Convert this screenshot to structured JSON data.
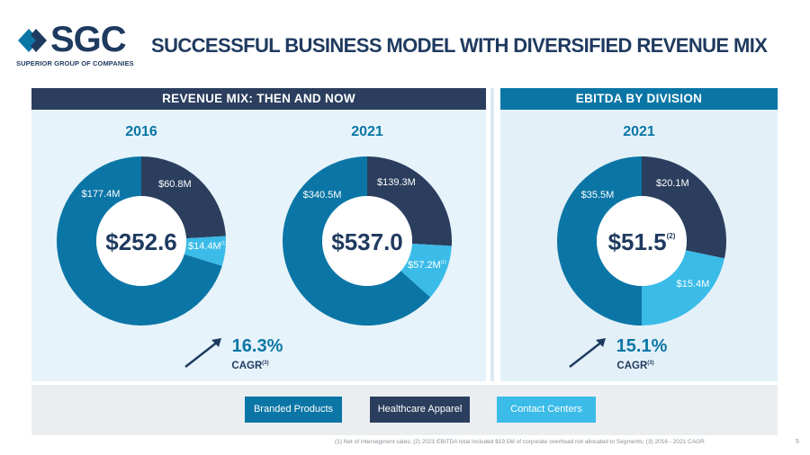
{
  "logo": {
    "name": "SGC",
    "tagline": "SUPERIOR GROUP OF COMPANIES"
  },
  "title": "SUCCESSFUL BUSINESS MODEL WITH DIVERSIFIED REVENUE MIX",
  "sections": {
    "left": "REVENUE MIX: THEN AND NOW",
    "right": "EBITDA BY DIVISION"
  },
  "colors": {
    "branded": "#0b76a6",
    "healthcare": "#2b3e5e",
    "contact": "#3bbce8",
    "accent": "#1f3a5f"
  },
  "legend": [
    "Branded Products",
    "Healthcare Apparel",
    "Contact Centers"
  ],
  "chart_data": [
    {
      "type": "pie",
      "title": "2016",
      "center_label": "$252.6",
      "center_superscript": "",
      "categories": [
        "Healthcare Apparel",
        "Contact Centers",
        "Branded Products"
      ],
      "values": [
        60.8,
        14.4,
        177.4
      ],
      "labels": [
        "$60.8M",
        "$14.4M",
        "$177.4M"
      ],
      "label_superscripts": [
        "",
        "(1)",
        ""
      ]
    },
    {
      "type": "pie",
      "title": "2021",
      "center_label": "$537.0",
      "center_superscript": "",
      "categories": [
        "Healthcare Apparel",
        "Contact Centers",
        "Branded Products"
      ],
      "values": [
        139.3,
        57.2,
        340.5
      ],
      "labels": [
        "$139.3M",
        "$57.2M",
        "$340.5M"
      ],
      "label_superscripts": [
        "",
        "(1)",
        ""
      ]
    },
    {
      "type": "pie",
      "title": "2021",
      "center_label": "$51.5",
      "center_superscript": "(2)",
      "categories": [
        "Healthcare Apparel",
        "Contact Centers",
        "Branded Products"
      ],
      "values": [
        20.1,
        15.4,
        35.5
      ],
      "labels": [
        "$20.1M",
        "$15.4M",
        "$35.5M"
      ],
      "label_superscripts": [
        "",
        "",
        ""
      ]
    }
  ],
  "cagr": [
    {
      "value": "16.3%",
      "label": "CAGR",
      "sup": "(3)"
    },
    {
      "value": "15.1%",
      "label": "CAGR",
      "sup": "(3)"
    }
  ],
  "footnote": "(1) Net of intersegment sales; (2) 2021 EBITDA total included $19.5M of corporate overhead not allocated to Segments; (3) 2016 - 2021 CAGR",
  "page_number": "5"
}
